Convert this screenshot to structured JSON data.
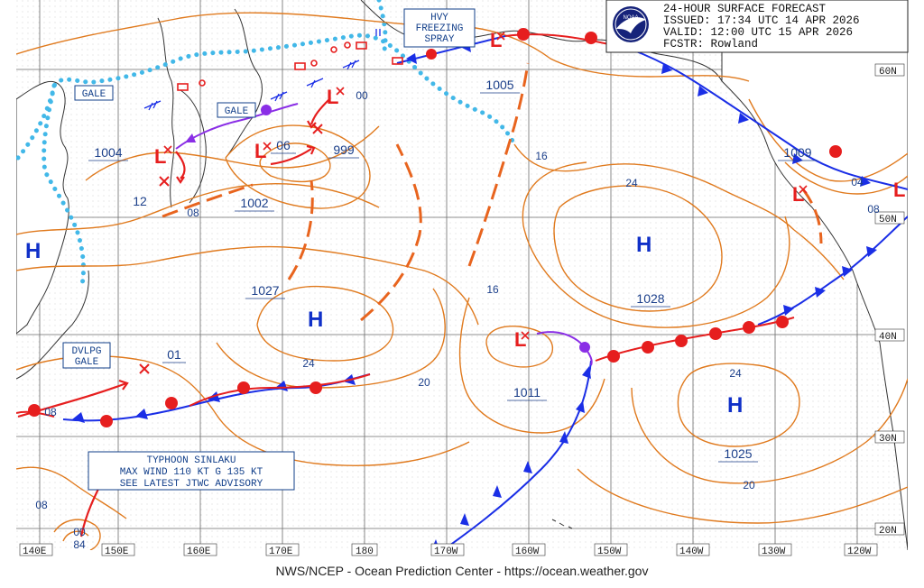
{
  "header": {
    "line1": "24-HOUR SURFACE FORECAST",
    "line2": "ISSUED: 17:34 UTC 14 APR 2026",
    "line3": "VALID:  12:00 UTC 15 APR 2026",
    "line4": "FCSTR:  Rowland",
    "logo_text": "NOAA"
  },
  "footer": "NWS/NCEP - Ocean Prediction Center - https://ocean.weather.gov",
  "longitude_labels": [
    "140E",
    "150E",
    "160E",
    "170E",
    "180",
    "170W",
    "160W",
    "150W",
    "140W",
    "130W",
    "120W"
  ],
  "latitude_labels": [
    "60N",
    "50N",
    "40N",
    "30N",
    "20N"
  ],
  "warnings": {
    "gale1": "GALE",
    "gale2": "GALE",
    "freezing_spray": [
      "HVY",
      "FREEZING",
      "SPRAY"
    ],
    "dvlpg_gale": [
      "DVLPG",
      "GALE"
    ],
    "typhoon": [
      "TYPHOON SINLAKU",
      "MAX WIND 110 KT G 135 KT",
      "SEE LATEST JTWC ADVISORY"
    ]
  },
  "pressure_centers": {
    "h_west": "H",
    "h_1027": "H",
    "h_1028": "H",
    "h_1025": "H",
    "l_kuril": "L",
    "l_okhotsk": "L",
    "l_kamchatka": "L",
    "l_bering": "L",
    "l_1011": "L",
    "l_bc": "L",
    "l_east": "L"
  },
  "pressure_values": {
    "p1004": "1004",
    "p06": "06",
    "p999": "999",
    "p00": "00",
    "p1005": "1005",
    "p1009": "1009",
    "p04": "04",
    "p08e": "08",
    "p12": "12",
    "p08a": "08",
    "p1002": "1002",
    "p1027": "1027",
    "p1028": "1028",
    "p1011": "1011",
    "p1025": "1025",
    "p01": "01",
    "p08w": "08",
    "p08sw": "08",
    "typhoon_00": "00",
    "typhoon_84": "84"
  },
  "isobar_labels": {
    "i16a": "16",
    "i24a": "24",
    "i16b": "16",
    "i24b": "24",
    "i20a": "20",
    "i24c": "24",
    "i20b": "20"
  },
  "colors": {
    "isobar": "#e07a1e",
    "cold_front": "#1a2ee6",
    "warm_front": "#e61e1e",
    "occluded_front": "#8a2ee6",
    "trough": "#e8641e",
    "ice_edge": "#42b8e8",
    "land": "#3a3a3a",
    "grid": "#555555"
  }
}
